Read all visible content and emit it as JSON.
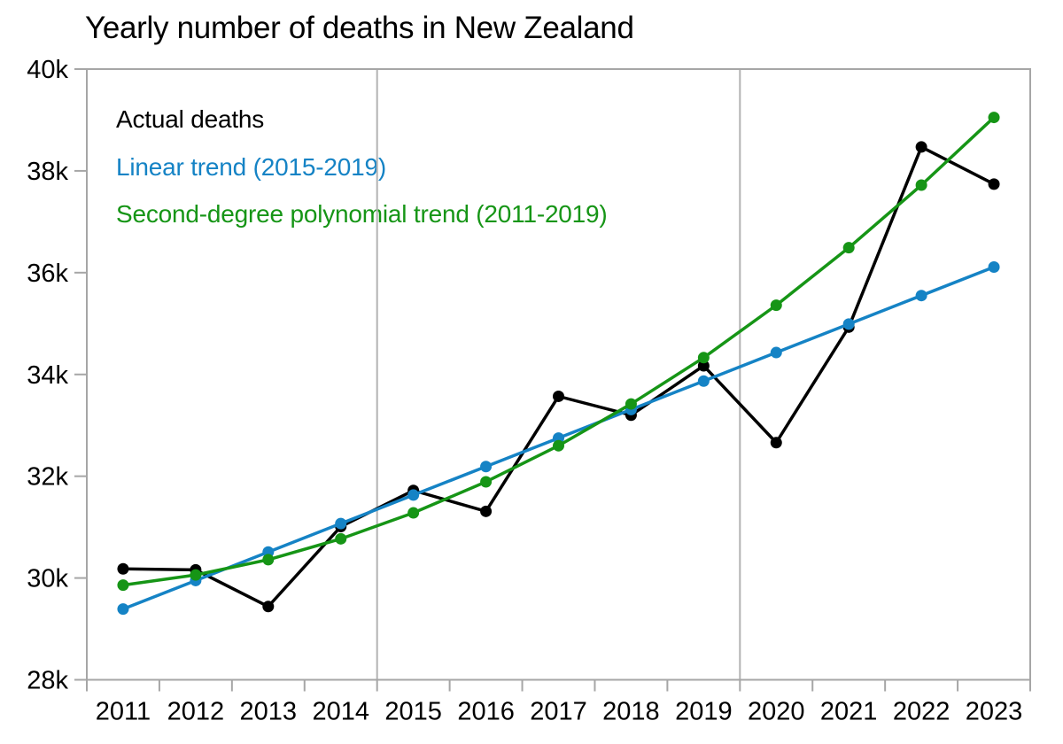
{
  "chart_data": {
    "type": "line",
    "title": "Yearly number of deaths in New Zealand",
    "x": [
      2011,
      2012,
      2013,
      2014,
      2015,
      2016,
      2017,
      2018,
      2019,
      2020,
      2021,
      2022,
      2023
    ],
    "x_tick_labels": [
      "2011",
      "2012",
      "2013",
      "2014",
      "2015",
      "2016",
      "2017",
      "2018",
      "2019",
      "2020",
      "2021",
      "2022",
      "2023"
    ],
    "series": [
      {
        "name": "Actual deaths",
        "color": "#000000",
        "values": [
          30180,
          30160,
          29440,
          31010,
          31720,
          31310,
          33570,
          33200,
          34170,
          32660,
          34930,
          38470,
          37740
        ]
      },
      {
        "name": "Linear trend (2015-2019)",
        "color": "#1583c5",
        "values": [
          29390,
          29950,
          30510,
          31070,
          31630,
          32190,
          32750,
          33310,
          33870,
          34430,
          34990,
          35550,
          36110
        ]
      },
      {
        "name": "Second-degree polynomial trend (2011-2019)",
        "color": "#169516",
        "values": [
          29860,
          30060,
          30360,
          30770,
          31280,
          31890,
          32600,
          33420,
          34330,
          35360,
          36490,
          37720,
          39050
        ]
      }
    ],
    "xlabel": "",
    "ylabel": "",
    "xlim": [
      2010.5,
      2023.5
    ],
    "ylim": [
      28000,
      40000
    ],
    "y_ticks": [
      28000,
      30000,
      32000,
      34000,
      36000,
      38000,
      40000
    ],
    "y_tick_labels": [
      "28k",
      "30k",
      "32k",
      "34k",
      "36k",
      "38k",
      "40k"
    ],
    "reference_lines_x": [
      2014.5,
      2019.5
    ],
    "grid": "two vertical reference lines only, no horizontal gridlines",
    "legend_position": "inside top-left, colored text labels"
  },
  "colors": {
    "axis": "#a6a6a6",
    "reference_line": "#b3b3b3",
    "text": "#000000",
    "background": "#ffffff"
  }
}
